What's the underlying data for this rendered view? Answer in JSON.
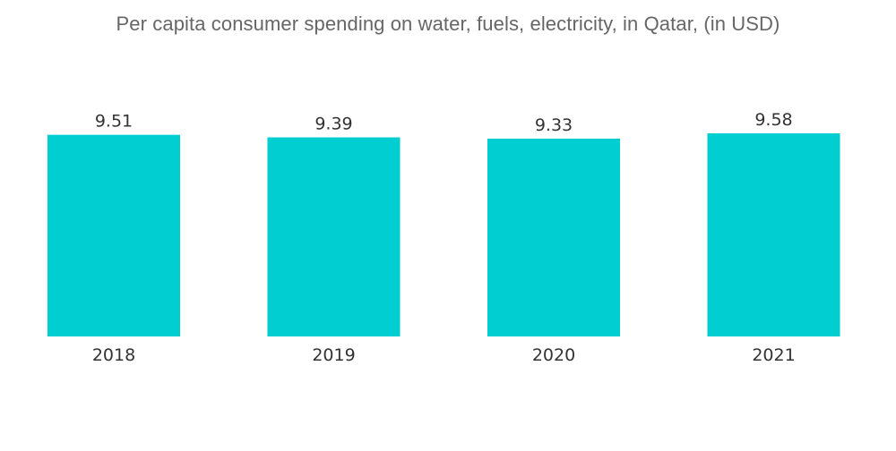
{
  "chart_data": {
    "type": "bar",
    "title": "Per capita consumer spending on water, fuels, electricity, in Qatar, (in USD)",
    "categories": [
      "2018",
      "2019",
      "2020",
      "2021"
    ],
    "values": [
      9.51,
      9.39,
      9.33,
      9.58
    ],
    "value_labels": [
      "9.51",
      "9.39",
      "9.33",
      "9.58"
    ],
    "xlabel": "",
    "ylabel": "",
    "ylim": [
      0,
      9.58
    ],
    "grid": false,
    "legend": "none",
    "colors": {
      "bar": "#00CED1",
      "text": "#333333",
      "title": "#666666"
    }
  }
}
